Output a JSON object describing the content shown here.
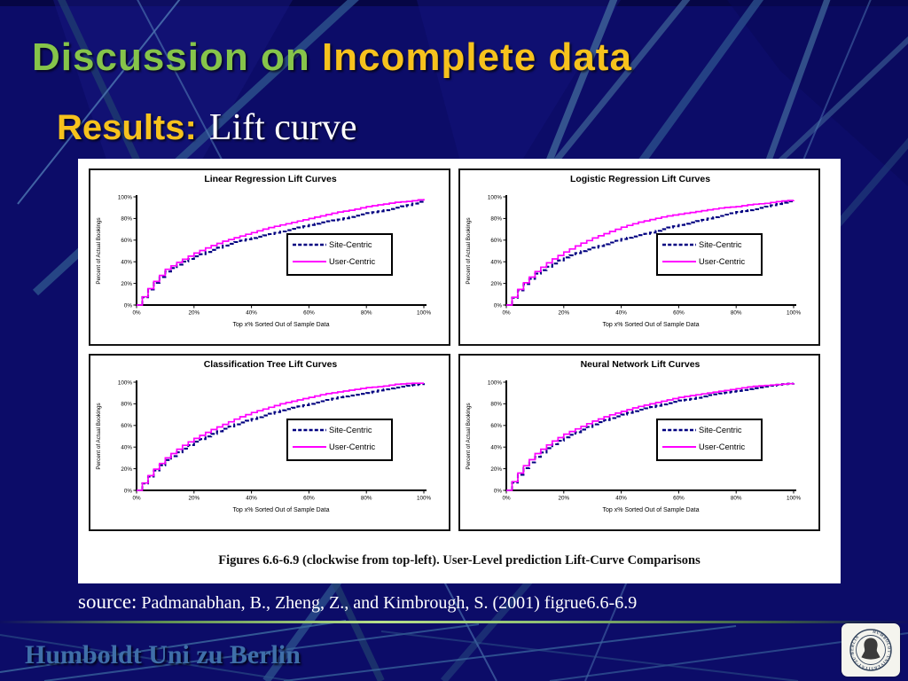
{
  "slide": {
    "title_part1": "Discussion on ",
    "title_part2": "Incomplete data",
    "subtitle_label": "Results:",
    "subtitle_text": "Lift curve",
    "figure_caption": "Figures 6.6-6.9 (clockwise from top-left). User-Level prediction Lift-Curve Comparisons",
    "source_prefix": "source:",
    "source_citation": " Padmanabhan, B., Zheng, Z., and Kimbrough, S. (2001) figrue6.6-6.9",
    "footer_text": "Humboldt Uni zu Berlin",
    "logo_ring_text": "HUMBOLDT·UNIVERSITÄT·ZU·BERLIN"
  },
  "colors": {
    "background": "#0c0c68",
    "beam_blue": "#2b4f8b",
    "title_green": "#86c44a",
    "title_gold": "#f6c21d",
    "site_centric_line": "#000080",
    "user_centric_line": "#ff00ff",
    "footer_blue": "#3f6fa9",
    "divider_green": "#b8e08a",
    "panel_white": "#ffffff"
  },
  "chart_data": [
    {
      "type": "line",
      "title": "Linear Regression Lift Curves",
      "xlabel": "Top x% Sorted Out of Sample Data",
      "ylabel": "Percent of Actual Bookings",
      "xlim": [
        0,
        100
      ],
      "ylim": [
        0,
        100
      ],
      "tick_positions": [
        0,
        20,
        40,
        60,
        80,
        100
      ],
      "x_tick_labels": [
        "0%",
        "20%",
        "40%",
        "60%",
        "80%",
        "100%"
      ],
      "y_tick_labels": [
        "0%",
        "20%",
        "40%",
        "60%",
        "80%",
        "100%"
      ],
      "legend_position": "right-center",
      "grid": false,
      "x": [
        0,
        5,
        10,
        15,
        20,
        25,
        30,
        35,
        40,
        45,
        50,
        55,
        60,
        65,
        70,
        75,
        80,
        85,
        90,
        95,
        100
      ],
      "series": [
        {
          "name": "Site-Centric",
          "style": "dashed",
          "color": "#000080",
          "values": [
            0,
            18,
            31,
            39,
            45,
            50,
            55,
            59,
            62,
            65,
            68,
            71,
            74,
            77,
            79,
            82,
            85,
            87,
            90,
            93,
            97
          ]
        },
        {
          "name": "User-Centric",
          "style": "solid",
          "color": "#ff00ff",
          "values": [
            0,
            19,
            33,
            41,
            48,
            54,
            59,
            63,
            67,
            71,
            74,
            77,
            80,
            83,
            86,
            88,
            91,
            93,
            95,
            96,
            98
          ]
        }
      ]
    },
    {
      "type": "line",
      "title": "Logistic Regression  Lift Curves",
      "xlabel": "Top x% Sorted Out of Sample Data",
      "ylabel": "Percent of Actual Bookings",
      "xlim": [
        0,
        100
      ],
      "ylim": [
        0,
        100
      ],
      "tick_positions": [
        0,
        20,
        40,
        60,
        80,
        100
      ],
      "x_tick_labels": [
        "0%",
        "20%",
        "40%",
        "60%",
        "80%",
        "100%"
      ],
      "y_tick_labels": [
        "0%",
        "20%",
        "40%",
        "60%",
        "80%",
        "100%"
      ],
      "legend_position": "right-center",
      "grid": false,
      "x": [
        0,
        5,
        10,
        15,
        20,
        25,
        30,
        35,
        40,
        45,
        50,
        55,
        60,
        65,
        70,
        75,
        80,
        85,
        90,
        95,
        100
      ],
      "series": [
        {
          "name": "Site-Centric",
          "style": "dashed",
          "color": "#000080",
          "values": [
            0,
            17,
            29,
            37,
            44,
            49,
            53,
            57,
            61,
            64,
            67,
            71,
            74,
            77,
            80,
            83,
            86,
            88,
            91,
            94,
            97
          ]
        },
        {
          "name": "User-Centric",
          "style": "solid",
          "color": "#ff00ff",
          "values": [
            0,
            18,
            31,
            41,
            49,
            56,
            62,
            67,
            72,
            76,
            79,
            82,
            84,
            86,
            88,
            90,
            91,
            93,
            94,
            96,
            97
          ]
        }
      ]
    },
    {
      "type": "line",
      "title": "Classification Tree Lift Curves",
      "xlabel": "Top x% Sorted Out of Sample Data",
      "ylabel": "Percent of Actual Bookings",
      "xlim": [
        0,
        100
      ],
      "ylim": [
        0,
        100
      ],
      "tick_positions": [
        0,
        20,
        40,
        60,
        80,
        100
      ],
      "x_tick_labels": [
        "0%",
        "20%",
        "40%",
        "60%",
        "80%",
        "100%"
      ],
      "y_tick_labels": [
        "0%",
        "20%",
        "40%",
        "60%",
        "80%",
        "100%"
      ],
      "legend_position": "right-center",
      "grid": false,
      "x": [
        0,
        5,
        10,
        15,
        20,
        25,
        30,
        35,
        40,
        45,
        50,
        55,
        60,
        65,
        70,
        75,
        80,
        85,
        90,
        95,
        100
      ],
      "series": [
        {
          "name": "Site-Centric",
          "style": "dashed",
          "color": "#000080",
          "values": [
            0,
            16,
            28,
            37,
            45,
            51,
            57,
            62,
            66,
            70,
            74,
            77,
            80,
            83,
            86,
            88,
            90,
            93,
            95,
            97,
            99
          ]
        },
        {
          "name": "User-Centric",
          "style": "solid",
          "color": "#ff00ff",
          "values": [
            0,
            17,
            30,
            40,
            48,
            55,
            61,
            67,
            72,
            76,
            80,
            83,
            86,
            89,
            91,
            93,
            95,
            96,
            98,
            99,
            99
          ]
        }
      ]
    },
    {
      "type": "line",
      "title": "Neural Network Lift Curves",
      "xlabel": "Top x% Sorted Out of Sample Data",
      "ylabel": "Percent of Actual Bookings",
      "xlim": [
        0,
        100
      ],
      "ylim": [
        0,
        100
      ],
      "tick_positions": [
        0,
        20,
        40,
        60,
        80,
        100
      ],
      "x_tick_labels": [
        "0%",
        "20%",
        "40%",
        "60%",
        "80%",
        "100%"
      ],
      "y_tick_labels": [
        "0%",
        "20%",
        "40%",
        "60%",
        "80%",
        "100%"
      ],
      "legend_position": "right-center",
      "grid": false,
      "x": [
        0,
        5,
        10,
        15,
        20,
        25,
        30,
        35,
        40,
        45,
        50,
        55,
        60,
        65,
        70,
        75,
        80,
        85,
        90,
        95,
        100
      ],
      "series": [
        {
          "name": "Site-Centric",
          "style": "dashed",
          "color": "#000080",
          "values": [
            0,
            18,
            31,
            41,
            49,
            55,
            61,
            66,
            70,
            74,
            77,
            80,
            83,
            85,
            88,
            90,
            92,
            94,
            96,
            98,
            99
          ]
        },
        {
          "name": "User-Centric",
          "style": "solid",
          "color": "#ff00ff",
          "values": [
            0,
            20,
            34,
            44,
            52,
            58,
            64,
            69,
            73,
            77,
            80,
            83,
            86,
            88,
            90,
            92,
            94,
            96,
            97,
            98,
            99
          ]
        }
      ]
    }
  ]
}
